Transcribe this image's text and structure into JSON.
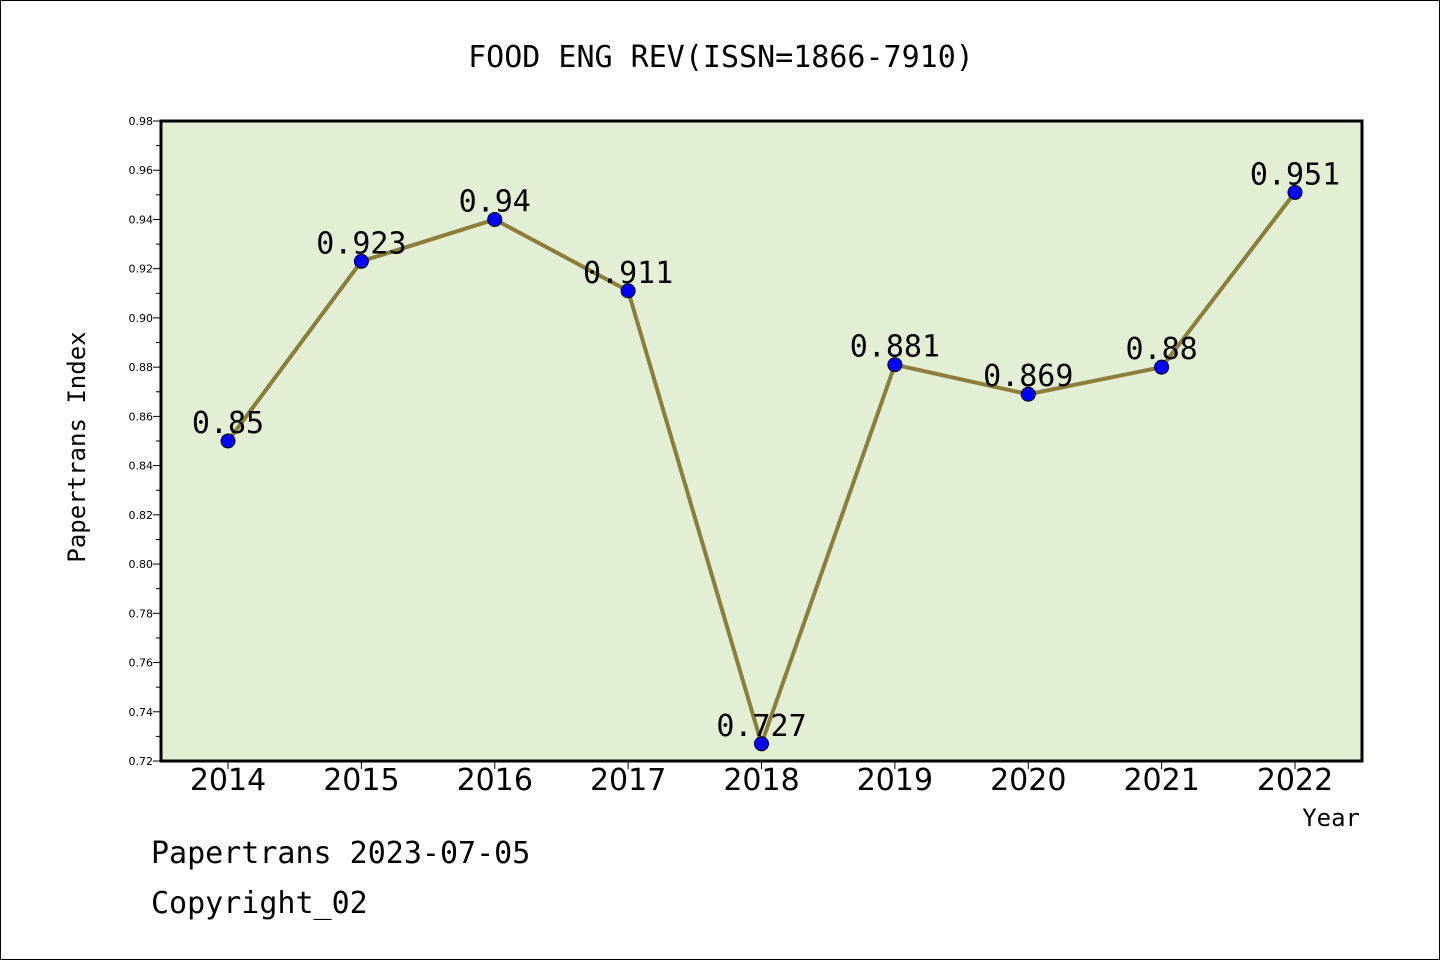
{
  "chart_data": {
    "type": "line",
    "title": "FOOD ENG REV(ISSN=1866-7910)",
    "xlabel": "Year",
    "ylabel": "Papertrans Index",
    "categories": [
      "2014",
      "2015",
      "2016",
      "2017",
      "2018",
      "2019",
      "2020",
      "2021",
      "2022"
    ],
    "values": [
      0.85,
      0.923,
      0.94,
      0.911,
      0.727,
      0.881,
      0.869,
      0.88,
      0.951
    ],
    "data_labels": [
      "0.85",
      "0.923",
      "0.94",
      "0.911",
      "0.727",
      "0.881",
      "0.869",
      "0.88",
      "0.951"
    ],
    "ylim": [
      0.72,
      0.98
    ],
    "yticks": [
      "0.72",
      "0.74",
      "0.76",
      "0.78",
      "0.80",
      "0.82",
      "0.84",
      "0.86",
      "0.88",
      "0.90",
      "0.92",
      "0.94",
      "0.96",
      "0.98"
    ],
    "grid": false,
    "legend": "none",
    "colors": {
      "plot_background": "#e2efd4",
      "line": "#8b7d3a",
      "marker": "#0000ff"
    }
  },
  "footer": {
    "line1": "Papertrans 2023-07-05",
    "line2": "Copyright_02"
  }
}
